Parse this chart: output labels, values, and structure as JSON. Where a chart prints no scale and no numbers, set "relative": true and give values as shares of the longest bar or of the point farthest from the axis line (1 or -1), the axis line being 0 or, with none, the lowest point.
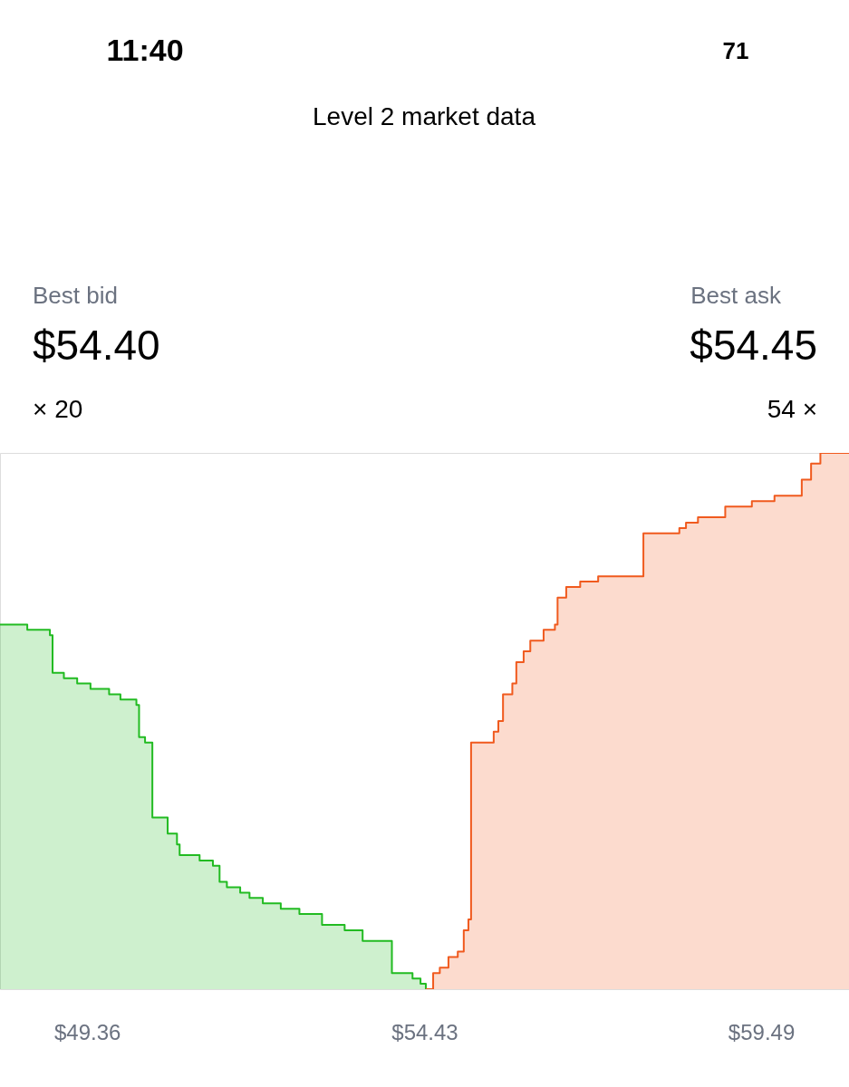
{
  "chart_data": {
    "type": "area",
    "title": "Level 2 market data",
    "relative": true,
    "line_style": "solid",
    "xlim": [
      48.05,
      60.81
    ],
    "xticks": [
      {
        "value": 49.36,
        "label": "$49.36"
      },
      {
        "value": 54.43,
        "label": "$54.43"
      },
      {
        "value": 59.49,
        "label": "$59.49"
      }
    ],
    "annotations": [
      "11:40",
      "71",
      "Best bid",
      "$54.40",
      "× 20",
      "Best ask",
      "$54.45",
      "54 ×"
    ],
    "series": [
      {
        "color": "#22bb22",
        "x": [
          48.05,
          48.19,
          48.46,
          48.8,
          48.84,
          49.01,
          49.21,
          49.41,
          49.69,
          49.86,
          50.1,
          50.14,
          50.23,
          50.34,
          50.57,
          50.71,
          50.75,
          51.05,
          51.25,
          51.35,
          51.46,
          51.66,
          51.8,
          52.0,
          52.27,
          52.55,
          52.89,
          53.23,
          53.5,
          53.91,
          53.94,
          54.11,
          54.25,
          54.37,
          54.45
        ],
        "values": [
          0.68,
          0.68,
          0.67,
          0.66,
          0.59,
          0.58,
          0.57,
          0.56,
          0.55,
          0.54,
          0.53,
          0.47,
          0.46,
          0.32,
          0.29,
          0.27,
          0.25,
          0.24,
          0.23,
          0.2,
          0.19,
          0.18,
          0.17,
          0.16,
          0.15,
          0.14,
          0.12,
          0.11,
          0.09,
          0.09,
          0.03,
          0.03,
          0.02,
          0.01,
          0
        ]
      },
      {
        "color": "#f05a1e",
        "x": [
          54.45,
          54.56,
          54.66,
          54.79,
          54.93,
          55.02,
          55.09,
          55.13,
          55.41,
          55.47,
          55.54,
          55.61,
          55.75,
          55.81,
          55.92,
          56.02,
          56.22,
          56.39,
          56.43,
          56.56,
          56.77,
          57.04,
          57.24,
          57.72,
          57.99,
          58.26,
          58.36,
          58.54,
          58.74,
          58.95,
          59.35,
          59.69,
          60.03,
          60.1,
          60.24,
          60.38,
          60.81
        ],
        "values": [
          0,
          0.03,
          0.04,
          0.06,
          0.07,
          0.11,
          0.13,
          0.46,
          0.46,
          0.48,
          0.5,
          0.55,
          0.57,
          0.61,
          0.63,
          0.65,
          0.67,
          0.68,
          0.73,
          0.75,
          0.76,
          0.77,
          0.77,
          0.85,
          0.85,
          0.86,
          0.87,
          0.88,
          0.88,
          0.9,
          0.91,
          0.92,
          0.92,
          0.95,
          0.98,
          1.0,
          1.0
        ]
      }
    ]
  }
}
